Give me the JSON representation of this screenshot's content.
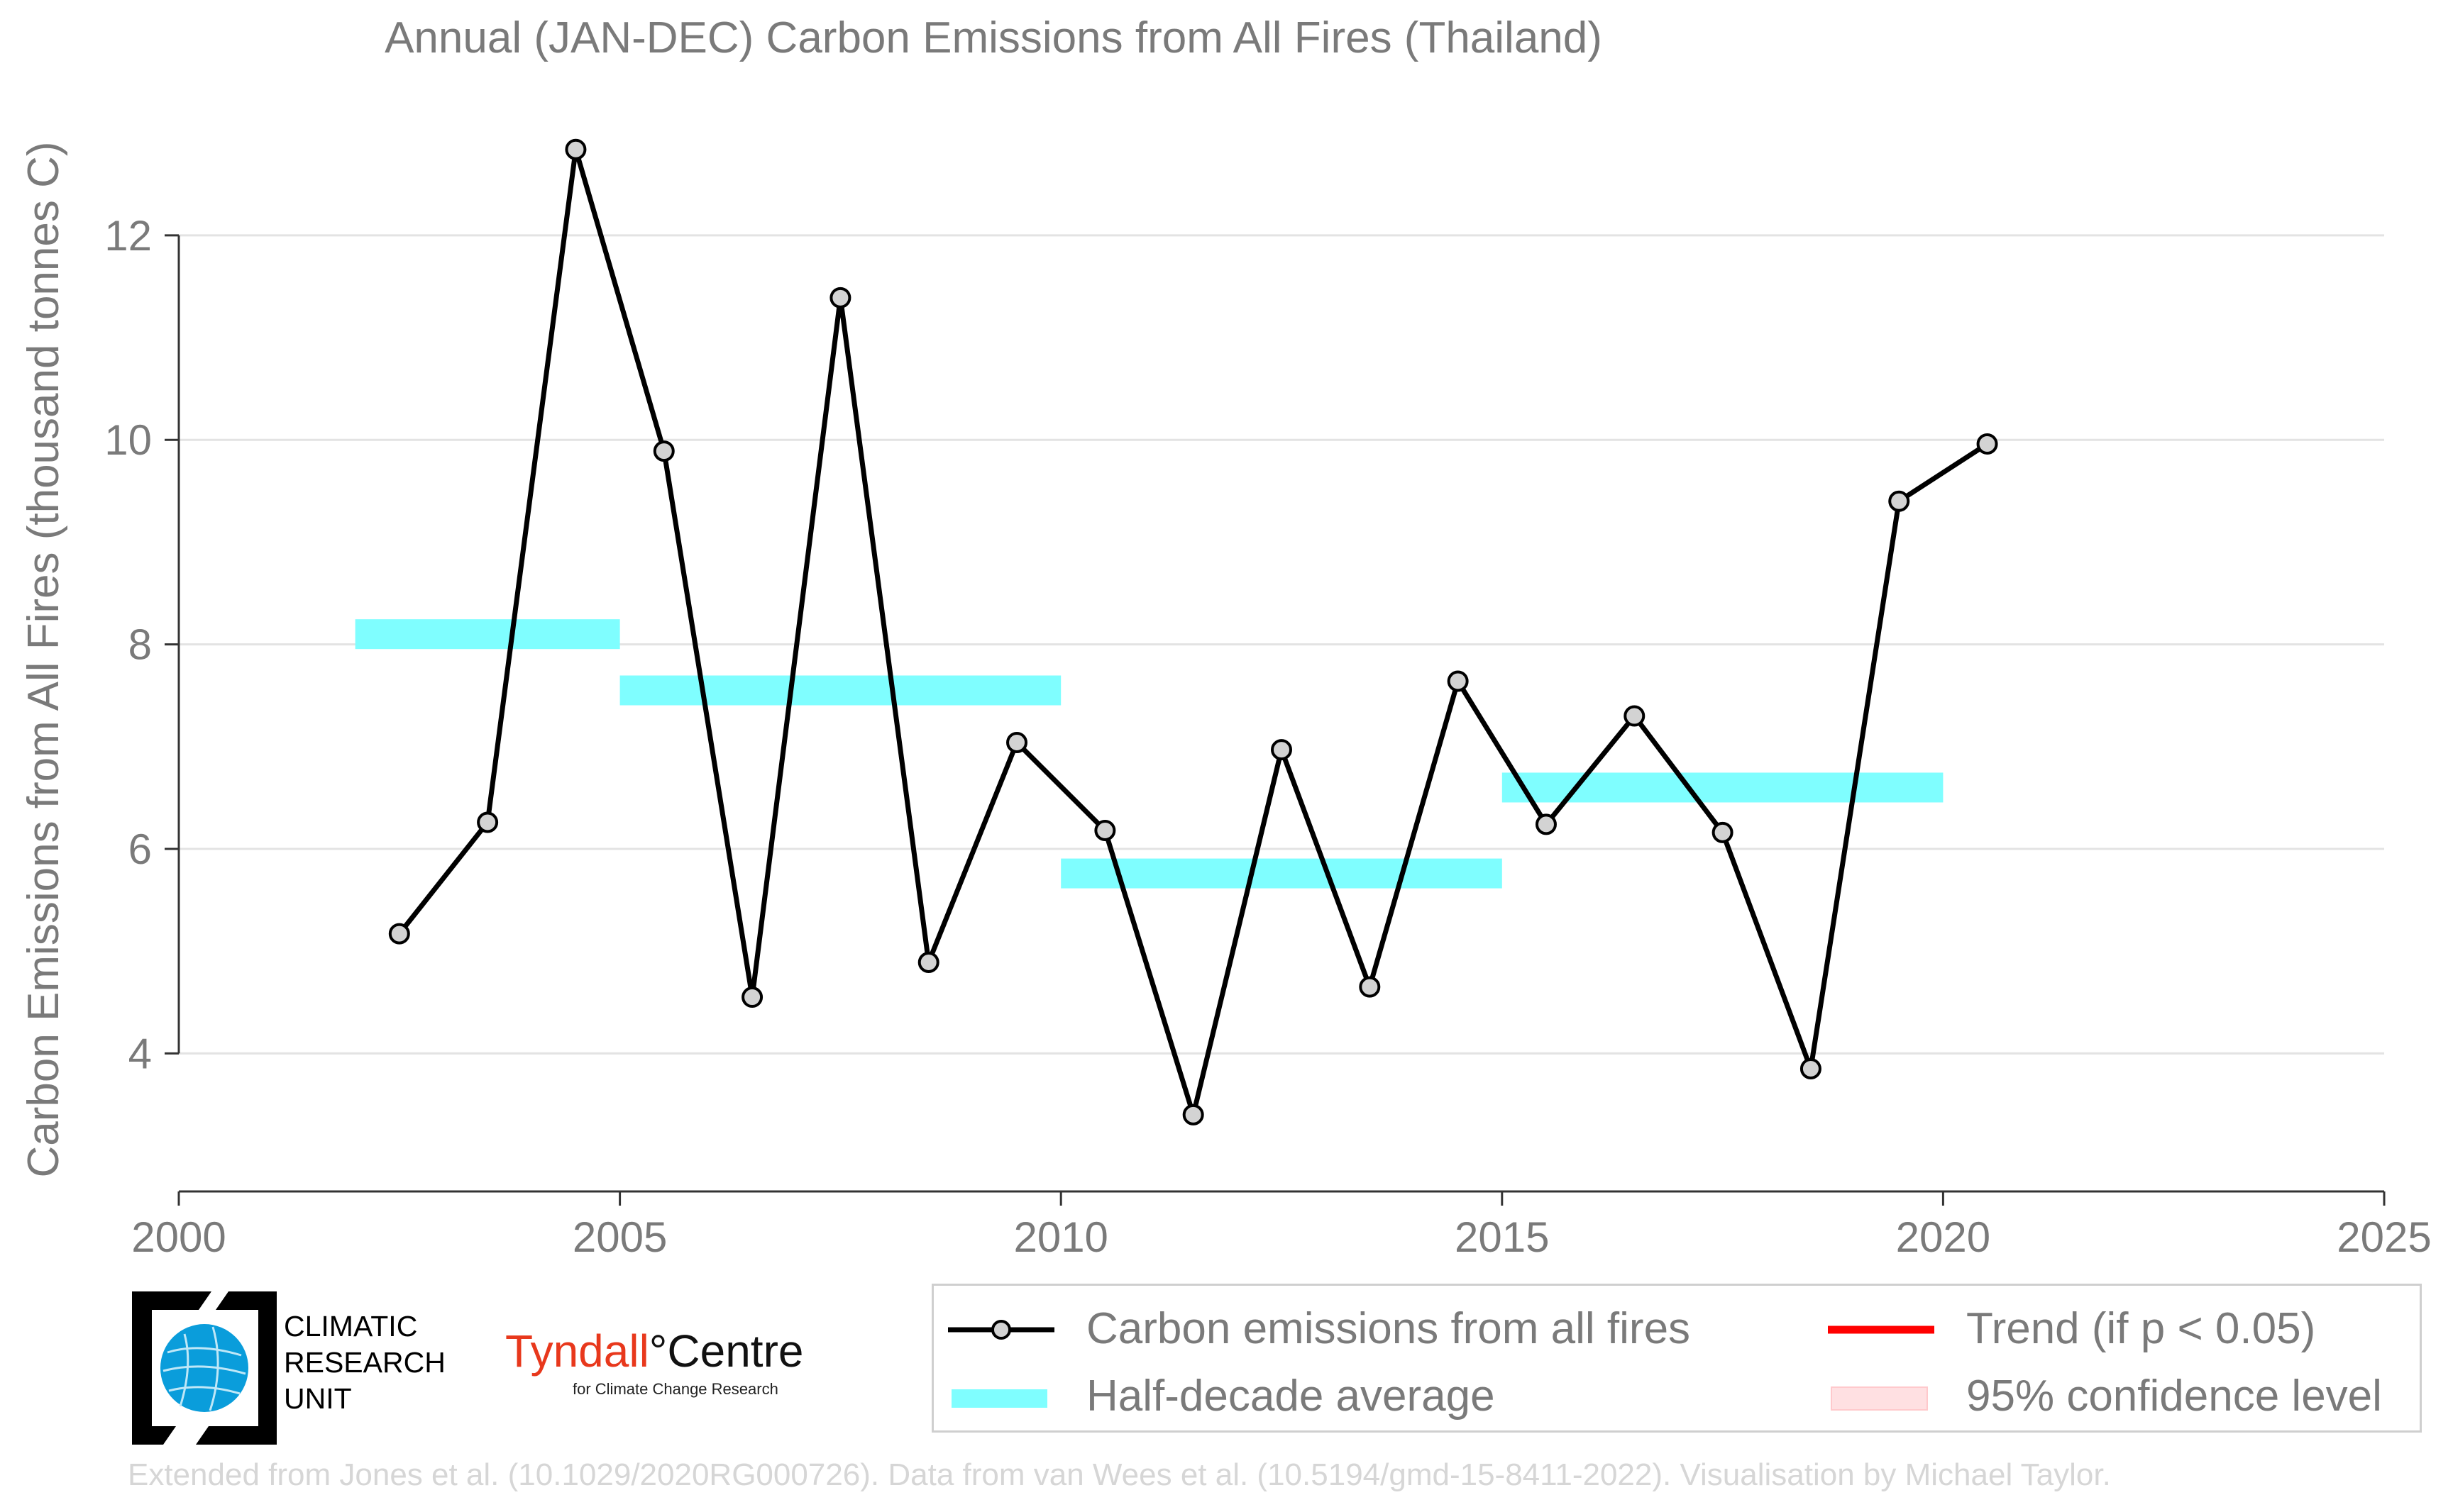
{
  "chart_data": {
    "type": "line",
    "title": "Annual (JAN-DEC) Carbon Emissions from All Fires (Thailand)",
    "xlabel": "",
    "ylabel": "Carbon Emissions from All Fires (thousand tonnes C)",
    "xlim": [
      2000,
      2025
    ],
    "ylim": [
      2.65,
      13.4
    ],
    "x_ticks": [
      2000,
      2005,
      2010,
      2015,
      2020,
      2025
    ],
    "y_ticks": [
      4,
      6,
      8,
      10,
      12
    ],
    "grid": "horizontal",
    "series": [
      {
        "name": "Carbon emissions from all fires",
        "color": "#000000",
        "marker_fill": "#d3d3d3",
        "points": [
          {
            "x": 2002.5,
            "y": 5.17
          },
          {
            "x": 2003.5,
            "y": 6.26
          },
          {
            "x": 2004.5,
            "y": 12.84
          },
          {
            "x": 2005.5,
            "y": 9.89
          },
          {
            "x": 2006.5,
            "y": 4.55
          },
          {
            "x": 2007.5,
            "y": 11.39
          },
          {
            "x": 2008.5,
            "y": 4.89
          },
          {
            "x": 2009.5,
            "y": 7.04
          },
          {
            "x": 2010.5,
            "y": 6.18
          },
          {
            "x": 2011.5,
            "y": 3.4
          },
          {
            "x": 2012.5,
            "y": 6.97
          },
          {
            "x": 2013.5,
            "y": 4.65
          },
          {
            "x": 2014.5,
            "y": 7.64
          },
          {
            "x": 2015.5,
            "y": 6.24
          },
          {
            "x": 2016.5,
            "y": 7.3
          },
          {
            "x": 2017.5,
            "y": 6.16
          },
          {
            "x": 2018.5,
            "y": 3.85
          },
          {
            "x": 2019.5,
            "y": 9.4
          },
          {
            "x": 2020.5,
            "y": 9.96
          }
        ]
      },
      {
        "name": "Half-decade average",
        "color": "#7ffeff",
        "segments": [
          {
            "x0": 2002,
            "x1": 2005,
            "y": 8.1
          },
          {
            "x0": 2005,
            "x1": 2010,
            "y": 7.55
          },
          {
            "x0": 2010,
            "x1": 2015,
            "y": 5.76
          },
          {
            "x0": 2015,
            "x1": 2020,
            "y": 6.6
          }
        ]
      }
    ],
    "legend": {
      "placement": "bottom-right",
      "items": [
        {
          "label": "Carbon emissions from all fires",
          "symbol": "line-marker",
          "color": "#000000"
        },
        {
          "label": "Trend (if p < 0.05)",
          "symbol": "line",
          "color": "#ff0000"
        },
        {
          "label": "Half-decade average",
          "symbol": "band",
          "color": "#7ffeff"
        },
        {
          "label": "95% confidence level",
          "symbol": "patch",
          "color": "#ffe0e2"
        }
      ]
    }
  },
  "logos": {
    "cru_text": [
      "CLIMATIC",
      "RESEARCH",
      "UNIT"
    ],
    "tyndall_word1": "Tyndall",
    "tyndall_word2": "°Centre",
    "tyndall_sub": "for Climate Change Research"
  },
  "footer": "Extended from Jones et al. (10.1029/2020RG000726). Data from van Wees et al. (10.5194/gmd-15-8411-2022). Visualisation by Michael Taylor."
}
